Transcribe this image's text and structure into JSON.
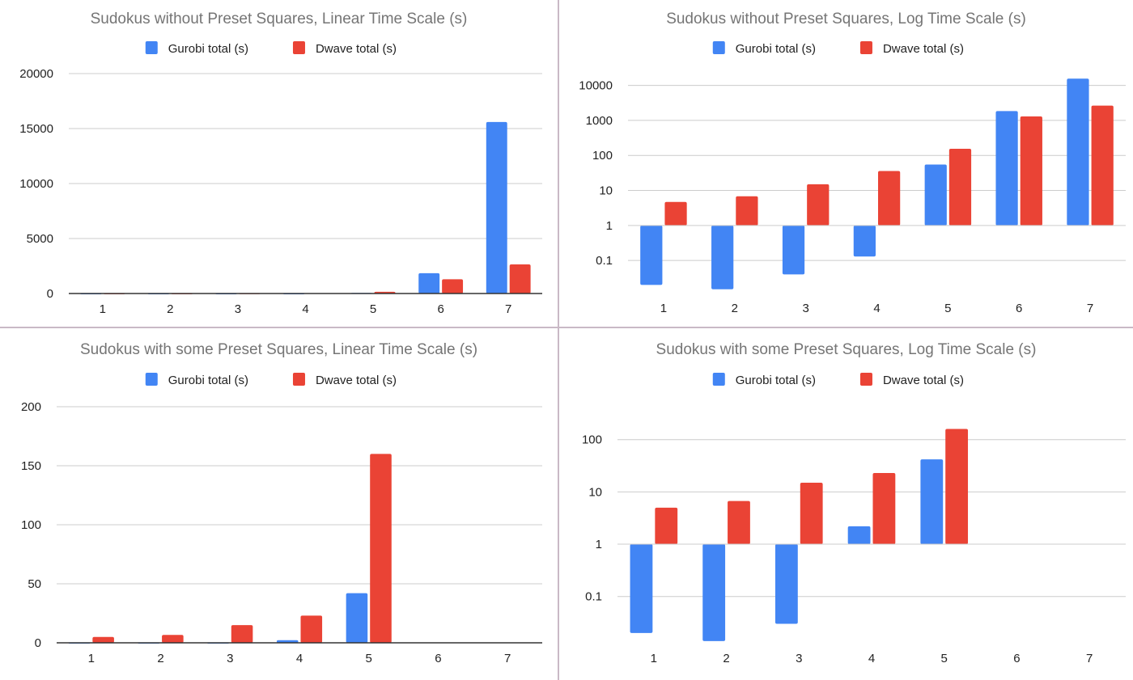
{
  "colors": {
    "gurobi": "#4285f4",
    "dwave": "#ea4335",
    "grid": "#cccccc",
    "axis": "#333333",
    "title": "#757575",
    "text": "#222222"
  },
  "chart_data": [
    {
      "type": "bar",
      "title": "Sudokus without Preset Squares, Linear Time Scale (s)",
      "scale": "linear",
      "categories": [
        "1",
        "2",
        "3",
        "4",
        "5",
        "6",
        "7"
      ],
      "ylim": [
        0,
        20000
      ],
      "yticks": [
        0,
        5000,
        10000,
        15000,
        20000
      ],
      "ytick_labels": [
        "0",
        "5000",
        "10000",
        "15000",
        "20000"
      ],
      "grid": true,
      "legend_position": "top",
      "series": [
        {
          "name": "Gurobi total (s)",
          "values": [
            0.02,
            0.015,
            0.04,
            0.13,
            55,
            1850,
            15600
          ]
        },
        {
          "name": "Dwave total (s)",
          "values": [
            4.7,
            6.8,
            15,
            36,
            155,
            1300,
            2650
          ]
        }
      ]
    },
    {
      "type": "bar",
      "title": "Sudokus without Preset Squares, Log Time Scale (s)",
      "scale": "log",
      "categories": [
        "1",
        "2",
        "3",
        "4",
        "5",
        "6",
        "7"
      ],
      "ylim": [
        0.012,
        15000
      ],
      "yticks": [
        0.1,
        1,
        10,
        100,
        1000,
        10000
      ],
      "ytick_labels": [
        "0.1",
        "1",
        "10",
        "100",
        "1000",
        "10000"
      ],
      "grid": true,
      "legend_position": "top",
      "series": [
        {
          "name": "Gurobi total (s)",
          "values": [
            0.02,
            0.015,
            0.04,
            0.13,
            55,
            1850,
            15600
          ]
        },
        {
          "name": "Dwave total (s)",
          "values": [
            4.7,
            6.8,
            15,
            36,
            155,
            1300,
            2650
          ]
        }
      ]
    },
    {
      "type": "bar",
      "title": "Sudokus with some Preset Squares, Linear Time Scale (s)",
      "scale": "linear",
      "categories": [
        "1",
        "2",
        "3",
        "4",
        "5",
        "6",
        "7"
      ],
      "ylim": [
        0,
        200
      ],
      "yticks": [
        0,
        50,
        100,
        150,
        200
      ],
      "ytick_labels": [
        "0",
        "50",
        "100",
        "150",
        "200"
      ],
      "grid": true,
      "legend_position": "top",
      "series": [
        {
          "name": "Gurobi total (s)",
          "values": [
            0.02,
            0.014,
            0.03,
            2.2,
            42,
            null,
            null
          ]
        },
        {
          "name": "Dwave total (s)",
          "values": [
            5,
            6.7,
            15,
            23,
            160,
            null,
            null
          ]
        }
      ]
    },
    {
      "type": "bar",
      "title": "Sudokus with some Preset Squares, Log Time Scale (s)",
      "scale": "log",
      "categories": [
        "1",
        "2",
        "3",
        "4",
        "5",
        "6",
        "7"
      ],
      "ylim": [
        0.013,
        250
      ],
      "yticks": [
        0.1,
        1,
        10,
        100
      ],
      "ytick_labels": [
        "0.1",
        "1",
        "10",
        "100"
      ],
      "grid": true,
      "legend_position": "top",
      "series": [
        {
          "name": "Gurobi total (s)",
          "values": [
            0.02,
            0.014,
            0.03,
            2.2,
            42,
            null,
            null
          ]
        },
        {
          "name": "Dwave total (s)",
          "values": [
            5,
            6.7,
            15,
            23,
            160,
            null,
            null
          ]
        }
      ]
    }
  ]
}
